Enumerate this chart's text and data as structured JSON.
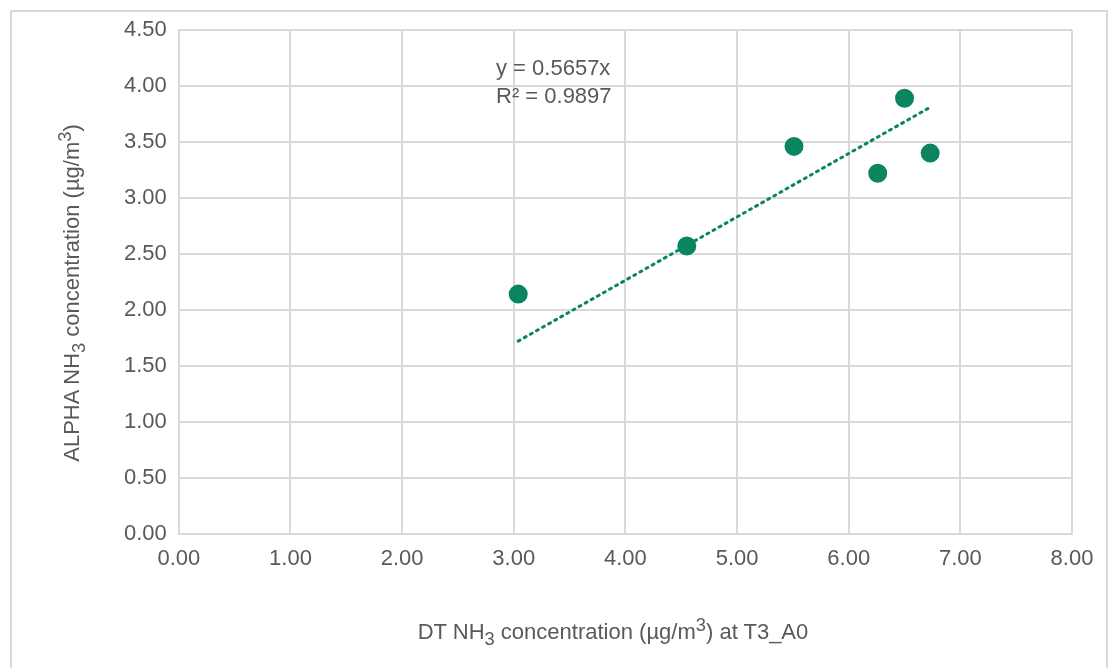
{
  "chart_data": {
    "type": "scatter",
    "xlabel": "DT NH$_{3}$ concentration (µg/m$^{3}$) at T3_A0",
    "ylabel": "ALPHA NH$_{3}$ concentration (µg/m$^{3}$)",
    "annotations": [
      "y = 0.5657x",
      "R² = 0.9897"
    ],
    "series": [
      {
        "type": "scatter",
        "color": "#0a8560",
        "marker": "circle",
        "x": [
          3.04,
          4.55,
          5.51,
          6.26,
          6.5,
          6.73
        ],
        "values": [
          2.14,
          2.57,
          3.46,
          3.22,
          3.89,
          3.4
        ]
      },
      {
        "type": "line",
        "color": "#0a8560",
        "marker": "none",
        "line_style": "dotted",
        "x": [
          3.04,
          6.73
        ],
        "values": [
          1.72,
          3.81
        ]
      }
    ],
    "xlim": [
      0,
      8
    ],
    "ylim": [
      0,
      4.5
    ],
    "xticks": [
      {
        "value": 0,
        "label": "0.00"
      },
      {
        "value": 1,
        "label": "1.00"
      },
      {
        "value": 2,
        "label": "2.00"
      },
      {
        "value": 3,
        "label": "3.00"
      },
      {
        "value": 4,
        "label": "4.00"
      },
      {
        "value": 5,
        "label": "5.00"
      },
      {
        "value": 6,
        "label": "6.00"
      },
      {
        "value": 7,
        "label": "7.00"
      },
      {
        "value": 8,
        "label": "8.00"
      }
    ],
    "yticks": [
      {
        "value": 0,
        "label": "0.00"
      },
      {
        "value": 0.5,
        "label": "0.50"
      },
      {
        "value": 1,
        "label": "1.00"
      },
      {
        "value": 1.5,
        "label": "1.50"
      },
      {
        "value": 2,
        "label": "2.00"
      },
      {
        "value": 2.5,
        "label": "2.50"
      },
      {
        "value": 3,
        "label": "3.00"
      },
      {
        "value": 3.5,
        "label": "3.50"
      },
      {
        "value": 4,
        "label": "4.00"
      },
      {
        "value": 4.5,
        "label": "4.50"
      }
    ],
    "grid": true,
    "legend": false
  }
}
